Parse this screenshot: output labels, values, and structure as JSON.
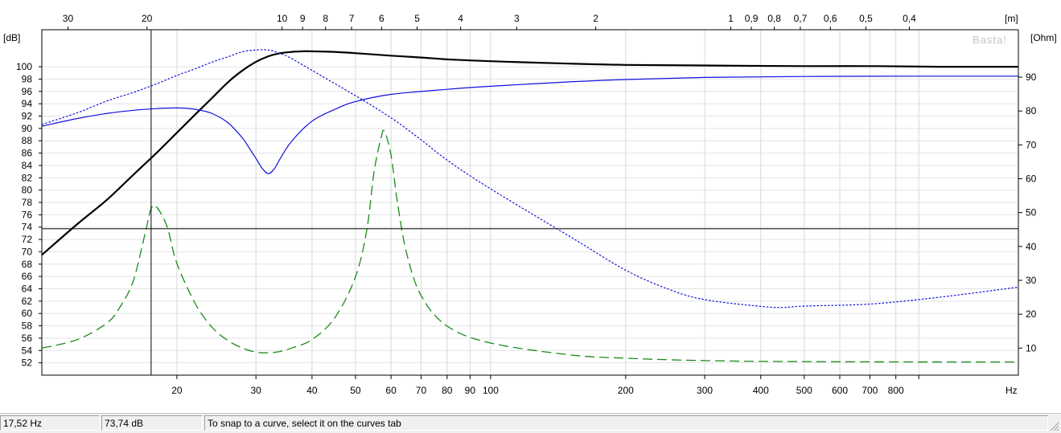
{
  "chart_data": {
    "type": "line",
    "x_scale": "log",
    "xlim": [
      10,
      1500
    ],
    "ylim_left": [
      50,
      106
    ],
    "ylim_right": [
      2,
      104
    ],
    "left_axis_unit": "[dB]",
    "right_axis_unit": "[Ohm]",
    "top_axis_unit": "[m]",
    "x_unit": "Hz",
    "watermark": "Basta!",
    "grid": true,
    "x_ticks": [
      {
        "v": 20,
        "label": "20"
      },
      {
        "v": 30,
        "label": "30"
      },
      {
        "v": 40,
        "label": "40"
      },
      {
        "v": 50,
        "label": "50"
      },
      {
        "v": 60,
        "label": "60"
      },
      {
        "v": 70,
        "label": "70"
      },
      {
        "v": 80,
        "label": "80"
      },
      {
        "v": 90,
        "label": "90"
      },
      {
        "v": 100,
        "label": "100"
      },
      {
        "v": 200,
        "label": "200"
      },
      {
        "v": 300,
        "label": "300"
      },
      {
        "v": 400,
        "label": "400"
      },
      {
        "v": 500,
        "label": "500"
      },
      {
        "v": 600,
        "label": "600"
      },
      {
        "v": 700,
        "label": "700"
      },
      {
        "v": 800,
        "label": "800"
      },
      {
        "v": 900,
        "label": ""
      }
    ],
    "top_ticks": [
      {
        "v": 30,
        "label": "30"
      },
      {
        "v": 20,
        "label": "20"
      },
      {
        "v": 10,
        "label": "10"
      },
      {
        "v": 9,
        "label": "9"
      },
      {
        "v": 8,
        "label": "8"
      },
      {
        "v": 7,
        "label": "7"
      },
      {
        "v": 6,
        "label": "6"
      },
      {
        "v": 5,
        "label": "5"
      },
      {
        "v": 4,
        "label": "4"
      },
      {
        "v": 3,
        "label": "3"
      },
      {
        "v": 2,
        "label": "2"
      },
      {
        "v": 1,
        "label": "1"
      },
      {
        "v": 0.9,
        "label": "0,9"
      },
      {
        "v": 0.8,
        "label": "0,8"
      },
      {
        "v": 0.7,
        "label": "0,7"
      },
      {
        "v": 0.6,
        "label": "0,6"
      },
      {
        "v": 0.5,
        "label": "0,5"
      },
      {
        "v": 0.4,
        "label": "0,4"
      }
    ],
    "left_ticks": [
      52,
      54,
      56,
      58,
      60,
      62,
      64,
      66,
      68,
      70,
      72,
      74,
      76,
      78,
      80,
      82,
      84,
      86,
      88,
      90,
      92,
      94,
      96,
      98,
      100
    ],
    "right_ticks": [
      10,
      20,
      30,
      40,
      50,
      60,
      70,
      80,
      90
    ],
    "cursor": {
      "x": 17.52,
      "y": 73.74
    },
    "series": [
      {
        "axis": "left",
        "color": "#000000",
        "style": "solid",
        "width": 2.2,
        "x": [
          10,
          12,
          14,
          16,
          18,
          20,
          22,
          24,
          26,
          28,
          30,
          32,
          34,
          36,
          38,
          40,
          45,
          50,
          60,
          70,
          80,
          100,
          150,
          200,
          300,
          500,
          700,
          1000,
          1500
        ],
        "y": [
          69.5,
          74.5,
          78.5,
          82.5,
          86,
          89.3,
          92.3,
          95,
          97.5,
          99.4,
          100.8,
          101.7,
          102.2,
          102.4,
          102.5,
          102.5,
          102.4,
          102.2,
          101.8,
          101.5,
          101.2,
          100.9,
          100.5,
          100.3,
          100.2,
          100.1,
          100.1,
          100,
          100
        ]
      },
      {
        "axis": "right",
        "color": "#1010e0",
        "style": "dotted",
        "width": 1.2,
        "x": [
          10,
          12,
          14,
          16,
          18,
          20,
          22,
          24,
          26,
          28,
          30,
          32,
          34,
          36,
          40,
          50,
          60,
          70,
          80,
          100,
          150,
          200,
          250,
          300,
          400,
          450,
          500,
          700,
          1000,
          1500
        ],
        "y": [
          76,
          79.5,
          83,
          85.5,
          88,
          90.5,
          92.5,
          94.5,
          96,
          97.5,
          98,
          98,
          97,
          95.5,
          92,
          84.5,
          78,
          71.5,
          65.5,
          57,
          43,
          33,
          27.3,
          24.3,
          22.3,
          22,
          22.4,
          23,
          25,
          28
        ]
      },
      {
        "axis": "right",
        "color": "#1010e0",
        "style": "solid",
        "width": 1.2,
        "x": [
          10,
          12,
          14,
          16,
          18,
          20,
          22,
          24,
          26,
          28,
          29,
          30,
          31,
          32,
          33,
          34,
          36,
          40,
          45,
          50,
          60,
          80,
          100,
          150,
          200,
          300,
          500,
          1000,
          1500
        ],
        "y": [
          75.5,
          77.8,
          79.3,
          80.2,
          80.7,
          80.9,
          80.5,
          79.2,
          76.5,
          72,
          69,
          66,
          63,
          61.5,
          63,
          66,
          71,
          77,
          80.5,
          82.8,
          84.9,
          86.4,
          87.3,
          88.6,
          89.3,
          89.9,
          90.2,
          90.3,
          90.3
        ]
      },
      {
        "axis": "right",
        "color": "#1a8a1a",
        "style": "dashed",
        "width": 1.3,
        "x": [
          10,
          12,
          14,
          15,
          16,
          17,
          17.5,
          18,
          19,
          20,
          22,
          24,
          26,
          28,
          30,
          32,
          34,
          36,
          40,
          45,
          50,
          53,
          55,
          57,
          58,
          60,
          62,
          65,
          70,
          80,
          100,
          150,
          200,
          300,
          500,
          1000,
          1500
        ],
        "y": [
          10,
          12.5,
          17.5,
          22.5,
          30,
          44,
          51,
          51.7,
          46,
          35,
          23,
          16,
          12.2,
          10,
          8.8,
          8.6,
          9,
          10,
          12.5,
          19,
          31,
          45,
          62,
          72,
          74,
          67,
          53,
          38,
          25.5,
          16.5,
          11.5,
          8,
          7,
          6.3,
          6,
          5.9,
          5.9
        ]
      }
    ]
  },
  "status": {
    "freq": "17,52 Hz",
    "level": "73,74 dB",
    "hint": "To snap to a curve, select it on the curves tab"
  }
}
